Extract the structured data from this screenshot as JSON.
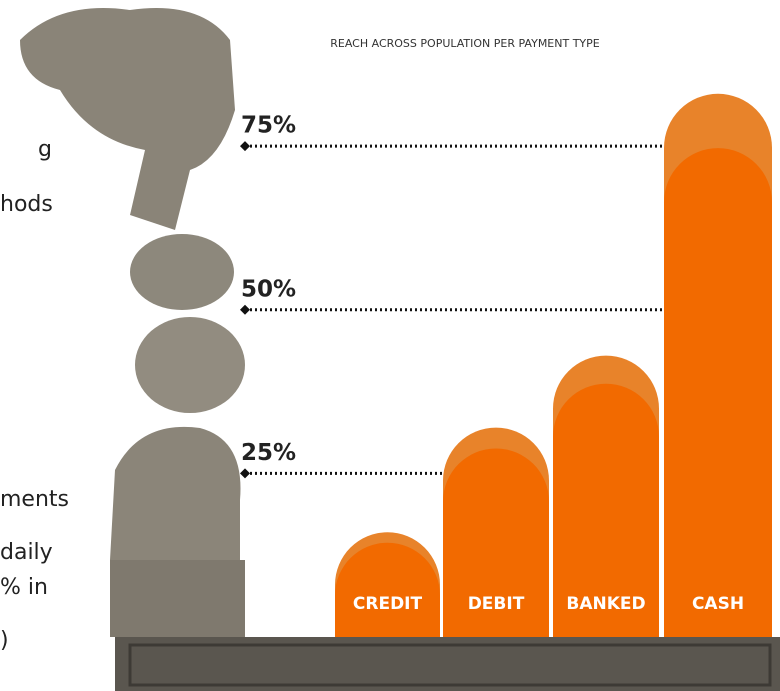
{
  "side_text": [
    "g",
    "hods",
    "ments",
    "daily",
    "% in",
    ")"
  ],
  "chart_data": {
    "type": "bar",
    "title": "REACH ACROSS POPULATION PER PAYMENT TYPE",
    "categories": [
      "CREDIT",
      "DEBIT",
      "BANKED",
      "CASH"
    ],
    "values": [
      16,
      32,
      43,
      83
    ],
    "color": "#f26a00",
    "ylim": [
      0,
      90
    ],
    "yticks": [
      {
        "value": 25,
        "label": "25%"
      },
      {
        "value": 50,
        "label": "50%"
      },
      {
        "value": 75,
        "label": "75%"
      }
    ],
    "grid": true
  }
}
